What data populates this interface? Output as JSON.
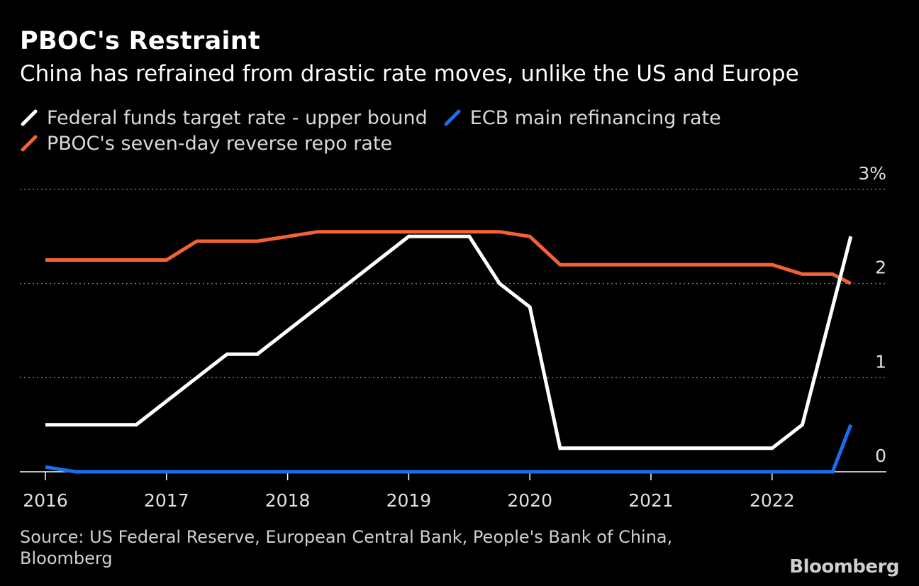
{
  "title": "PBOC's Restraint",
  "subtitle": "China has refrained from drastic rate moves, unlike the US and Europe",
  "source": "Source: US Federal Reserve, European Central Bank, People's Bank of China, Bloomberg",
  "brand": "Bloomberg",
  "chart_data": {
    "type": "line",
    "title": "PBOC's Restraint",
    "subtitle": "China has refrained from drastic rate moves, unlike the US and Europe",
    "xlabel": "",
    "ylabel": "",
    "xlim": [
      2016.0,
      2022.75
    ],
    "ylim": [
      0,
      3
    ],
    "x_ticks": [
      "2016",
      "2017",
      "2018",
      "2019",
      "2020",
      "2021",
      "2022"
    ],
    "y_ticks": [
      "0",
      "1",
      "2",
      "3%"
    ],
    "y_tick_values": [
      0,
      1,
      2,
      3
    ],
    "grid": true,
    "legend": "top-left",
    "series": [
      {
        "name": "Federal funds target rate - upper bound",
        "color": "#ffffff",
        "points": [
          [
            2016.0,
            0.5
          ],
          [
            2016.75,
            0.5
          ],
          [
            2017.0,
            0.75
          ],
          [
            2017.25,
            1.0
          ],
          [
            2017.5,
            1.25
          ],
          [
            2017.75,
            1.25
          ],
          [
            2018.0,
            1.5
          ],
          [
            2018.25,
            1.75
          ],
          [
            2018.5,
            2.0
          ],
          [
            2018.75,
            2.25
          ],
          [
            2019.0,
            2.5
          ],
          [
            2019.5,
            2.5
          ],
          [
            2019.75,
            2.0
          ],
          [
            2020.0,
            1.75
          ],
          [
            2020.25,
            0.25
          ],
          [
            2022.0,
            0.25
          ],
          [
            2022.25,
            0.5
          ],
          [
            2022.5,
            1.75
          ],
          [
            2022.65,
            2.5
          ]
        ]
      },
      {
        "name": "ECB main refinancing rate",
        "color": "#1a6cf0",
        "points": [
          [
            2016.0,
            0.05
          ],
          [
            2016.25,
            0.0
          ],
          [
            2022.5,
            0.0
          ],
          [
            2022.65,
            0.5
          ]
        ]
      },
      {
        "name": "PBOC's seven-day reverse repo rate",
        "color": "#f26232",
        "points": [
          [
            2016.0,
            2.25
          ],
          [
            2017.0,
            2.25
          ],
          [
            2017.25,
            2.45
          ],
          [
            2017.75,
            2.45
          ],
          [
            2018.0,
            2.5
          ],
          [
            2018.25,
            2.55
          ],
          [
            2019.75,
            2.55
          ],
          [
            2020.0,
            2.5
          ],
          [
            2020.25,
            2.2
          ],
          [
            2022.0,
            2.2
          ],
          [
            2022.25,
            2.1
          ],
          [
            2022.5,
            2.1
          ],
          [
            2022.65,
            2.0
          ]
        ]
      }
    ]
  }
}
